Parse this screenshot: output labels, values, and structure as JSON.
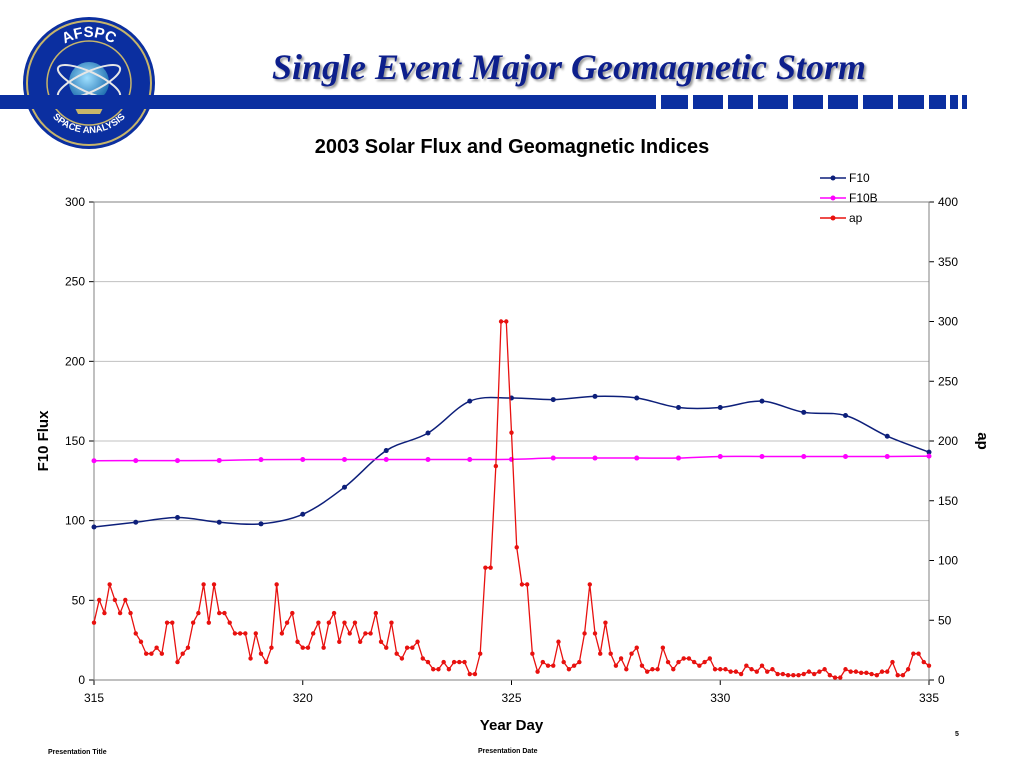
{
  "header": {
    "title": "Single Event Major Geomagnetic Storm",
    "logo_top_text": "AFSPC",
    "logo_bottom_text": "SPACE ANALYSIS",
    "brand_color": "#0b2fa0"
  },
  "footer": {
    "presentation_title": "Presentation Title",
    "presentation_date": "Presentation Date",
    "page_number": "5"
  },
  "chart_data": {
    "type": "line",
    "title": "2003 Solar Flux and Geomagnetic Indices",
    "xlabel": "Year Day",
    "ylabel": "F10 Flux",
    "y2label": "ap",
    "xlim": [
      315,
      335
    ],
    "ylim": [
      0,
      300
    ],
    "y2lim": [
      0,
      400
    ],
    "xticks": [
      315,
      320,
      325,
      330,
      335
    ],
    "yticks": [
      0,
      50,
      100,
      150,
      200,
      250,
      300
    ],
    "y2ticks": [
      0,
      50,
      100,
      150,
      200,
      250,
      300,
      350,
      400
    ],
    "grid": true,
    "legend_position": "top-right",
    "series": [
      {
        "name": "F10",
        "axis": "left",
        "color": "#0d1f7a",
        "smooth": true,
        "x": [
          315,
          316,
          317,
          318,
          319,
          320,
          321,
          322,
          323,
          324,
          325,
          326,
          327,
          328,
          329,
          330,
          331,
          332,
          333,
          334,
          335
        ],
        "y": [
          96,
          99,
          102,
          99,
          98,
          104,
          121,
          144,
          155,
          175,
          177,
          176,
          178,
          177,
          171,
          171,
          175,
          168,
          166,
          153,
          143
        ]
      },
      {
        "name": "F10B",
        "axis": "left",
        "color": "#ff00ff",
        "smooth": true,
        "x": [
          315,
          316,
          317,
          318,
          319,
          320,
          321,
          322,
          323,
          324,
          325,
          326,
          327,
          328,
          329,
          330,
          331,
          332,
          333,
          334,
          335
        ],
        "y": [
          137.6,
          137.7,
          137.7,
          137.8,
          138.3,
          138.4,
          138.4,
          138.4,
          138.4,
          138.4,
          138.5,
          139.3,
          139.3,
          139.3,
          139.3,
          140.3,
          140.3,
          140.3,
          140.3,
          140.3,
          140.5
        ]
      },
      {
        "name": "ap",
        "axis": "right",
        "color": "#e8110f",
        "smooth": false,
        "x0": 315,
        "dx": 0.125,
        "y": [
          48,
          67,
          56,
          80,
          67,
          56,
          67,
          56,
          39,
          32,
          22,
          22,
          27,
          22,
          48,
          48,
          15,
          22,
          27,
          48,
          56,
          80,
          48,
          80,
          56,
          56,
          48,
          39,
          39,
          39,
          18,
          39,
          22,
          15,
          27,
          80,
          39,
          48,
          56,
          32,
          27,
          27,
          39,
          48,
          27,
          48,
          56,
          32,
          48,
          39,
          48,
          32,
          39,
          39,
          56,
          32,
          27,
          48,
          22,
          18,
          27,
          27,
          32,
          18,
          15,
          9,
          9,
          15,
          9,
          15,
          15,
          15,
          5,
          5,
          22,
          94,
          94,
          179,
          300,
          300,
          207,
          111,
          80,
          80,
          22,
          7,
          15,
          12,
          12,
          32,
          15,
          9,
          12,
          15,
          39,
          80,
          39,
          22,
          48,
          22,
          12,
          18,
          9,
          22,
          27,
          12,
          7,
          9,
          9,
          27,
          15,
          9,
          15,
          18,
          18,
          15,
          12,
          15,
          18,
          9,
          9,
          9,
          7,
          7,
          5,
          12,
          9,
          7,
          12,
          7,
          9,
          5,
          5,
          4,
          4,
          4,
          5,
          7,
          5,
          7,
          9,
          4,
          2,
          2,
          9,
          7,
          7,
          6,
          6,
          5,
          4,
          7,
          7,
          15,
          4,
          4,
          9,
          22,
          22,
          15,
          12
        ]
      }
    ]
  }
}
